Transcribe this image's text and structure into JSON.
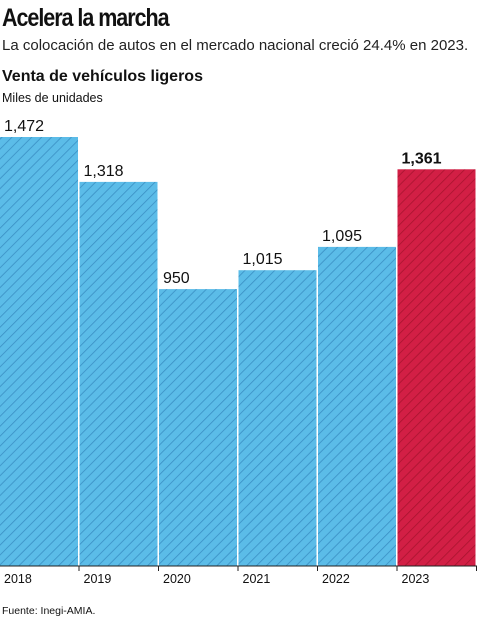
{
  "headline": "Acelera la marcha",
  "subheadline": "La colocación de autos en el mercado nacional creció 24.4% en 2023.",
  "source": "Fuente: Inegi-AMIA.",
  "colors": {
    "bar": "#5bbce8",
    "bar_highlight": "#d21f45",
    "hatch": "#3a8fc4",
    "hatch_highlight": "#a8142f"
  },
  "chart_data": {
    "type": "bar",
    "title": "Venta de vehículos ligeros",
    "subtitle": "Miles de unidades",
    "categories": [
      "2018",
      "2019",
      "2020",
      "2021",
      "2022",
      "2023"
    ],
    "values": [
      1472,
      1318,
      950,
      1015,
      1095,
      1361
    ],
    "value_labels": [
      "1,472",
      "1,318",
      "950",
      "1,015",
      "1,095",
      "1,361"
    ],
    "highlight": "2023",
    "ylim": [
      0,
      1472
    ],
    "grid": false
  }
}
